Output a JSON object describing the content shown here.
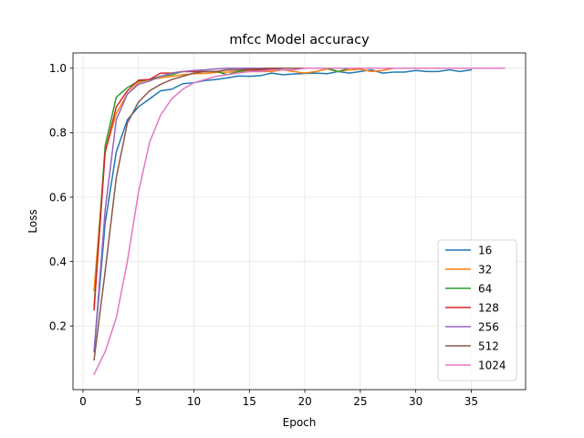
{
  "chart_data": {
    "type": "line",
    "title": "mfcc Model accuracy",
    "xlabel": "Epoch",
    "ylabel": "Loss",
    "xlim": [
      -0.9,
      39.9
    ],
    "ylim": [
      0.0024,
      1.0476
    ],
    "xticks": [
      0,
      5,
      10,
      15,
      20,
      25,
      30,
      35
    ],
    "yticks": [
      0.2,
      0.4,
      0.6,
      0.8,
      1.0
    ],
    "ytick_labels": [
      "0.2",
      "0.4",
      "0.6",
      "0.8",
      "1.0"
    ],
    "grid": true,
    "legend_position": "lower-right",
    "series": [
      {
        "name": "16",
        "color": "#1f77b4",
        "x": [
          1,
          2,
          3,
          4,
          5,
          6,
          7,
          8,
          9,
          10,
          11,
          12,
          13,
          14,
          15,
          16,
          17,
          18,
          19,
          20,
          21,
          22,
          23,
          24,
          25,
          26,
          27,
          28,
          29,
          30,
          31,
          32,
          33,
          34,
          35
        ],
        "y": [
          0.12,
          0.52,
          0.74,
          0.84,
          0.88,
          0.905,
          0.93,
          0.935,
          0.952,
          0.955,
          0.962,
          0.965,
          0.97,
          0.976,
          0.975,
          0.977,
          0.985,
          0.98,
          0.982,
          0.984,
          0.985,
          0.983,
          0.99,
          0.985,
          0.99,
          0.995,
          0.985,
          0.988,
          0.988,
          0.993,
          0.99,
          0.99,
          0.995,
          0.99,
          0.995
        ]
      },
      {
        "name": "32",
        "color": "#ff7f0e",
        "x": [
          1,
          2,
          3,
          4,
          5,
          6,
          7,
          8,
          9,
          10,
          11,
          12,
          13,
          14,
          15,
          16,
          17,
          18,
          19,
          20,
          21,
          22,
          23,
          24,
          25,
          26,
          27,
          28
        ],
        "y": [
          0.31,
          0.74,
          0.86,
          0.92,
          0.955,
          0.965,
          0.97,
          0.975,
          0.98,
          0.983,
          0.984,
          0.987,
          0.988,
          0.99,
          0.99,
          0.99,
          0.99,
          0.995,
          0.99,
          0.985,
          0.99,
          0.998,
          0.99,
          0.995,
          0.997,
          0.99,
          0.993,
          1.0
        ]
      },
      {
        "name": "64",
        "color": "#2ca02c",
        "x": [
          1,
          2,
          3,
          4,
          5,
          6,
          7,
          8,
          9,
          10,
          11,
          12,
          13,
          14,
          15,
          16,
          17,
          18,
          19,
          20,
          21,
          22,
          23,
          24,
          25,
          26
        ],
        "y": [
          0.26,
          0.76,
          0.91,
          0.94,
          0.96,
          0.965,
          0.975,
          0.98,
          0.99,
          0.99,
          0.99,
          0.99,
          0.98,
          0.99,
          0.995,
          0.99,
          0.995,
          1.0,
          1.0,
          1.0,
          1.0,
          1.0,
          0.99,
          1.0,
          1.0,
          1.0
        ]
      },
      {
        "name": "128",
        "color": "#d62728",
        "x": [
          1,
          2,
          3,
          4,
          5,
          6,
          7,
          8,
          9,
          10,
          11,
          12,
          13,
          14,
          15,
          16,
          17,
          18,
          19,
          20,
          21,
          22,
          23,
          24,
          25
        ],
        "y": [
          0.25,
          0.74,
          0.88,
          0.93,
          0.963,
          0.965,
          0.985,
          0.985,
          0.99,
          0.99,
          0.99,
          0.99,
          0.995,
          0.995,
          0.995,
          0.995,
          0.998,
          1.0,
          1.0,
          1.0,
          1.0,
          1.0,
          1.0,
          1.0,
          1.0
        ]
      },
      {
        "name": "256",
        "color": "#9467bd",
        "x": [
          1,
          2,
          3,
          4,
          5,
          6,
          7,
          8,
          9,
          10,
          11,
          12,
          13,
          14,
          15,
          16,
          17,
          18,
          19,
          20,
          21,
          22,
          23,
          24,
          25,
          26,
          27,
          28
        ],
        "y": [
          0.12,
          0.56,
          0.84,
          0.92,
          0.95,
          0.96,
          0.975,
          0.985,
          0.99,
          0.993,
          0.995,
          0.998,
          1.0,
          1.0,
          1.0,
          1.0,
          1.0,
          1.0,
          1.0,
          1.0,
          1.0,
          1.0,
          1.0,
          1.0,
          1.0,
          1.0,
          1.0,
          1.0
        ]
      },
      {
        "name": "512",
        "color": "#8c564b",
        "x": [
          1,
          2,
          3,
          4,
          5,
          6,
          7,
          8,
          9,
          10,
          11,
          12,
          13,
          14,
          15,
          16,
          17,
          18,
          19,
          20,
          21,
          22,
          23,
          24,
          25,
          26,
          27,
          28,
          29,
          30,
          31,
          32,
          33,
          34,
          35
        ],
        "y": [
          0.095,
          0.37,
          0.66,
          0.83,
          0.895,
          0.93,
          0.95,
          0.965,
          0.975,
          0.985,
          0.99,
          0.99,
          0.995,
          0.995,
          0.997,
          0.998,
          1.0,
          1.0,
          1.0,
          1.0,
          1.0,
          1.0,
          1.0,
          1.0,
          1.0,
          1.0,
          1.0,
          1.0,
          1.0,
          1.0,
          1.0,
          1.0,
          1.0,
          1.0,
          1.0
        ]
      },
      {
        "name": "1024",
        "color": "#e377c2",
        "x": [
          1,
          2,
          3,
          4,
          5,
          6,
          7,
          8,
          9,
          10,
          11,
          12,
          13,
          14,
          15,
          16,
          17,
          18,
          19,
          20,
          21,
          22,
          23,
          24,
          25,
          26,
          27,
          28,
          29,
          30,
          31,
          32,
          33,
          34,
          35,
          36,
          37,
          38
        ],
        "y": [
          0.05,
          0.12,
          0.225,
          0.4,
          0.615,
          0.77,
          0.855,
          0.905,
          0.935,
          0.955,
          0.965,
          0.975,
          0.98,
          0.985,
          0.99,
          0.99,
          0.995,
          0.995,
          0.995,
          1.0,
          1.0,
          1.0,
          1.0,
          1.0,
          1.0,
          1.0,
          1.0,
          1.0,
          1.0,
          1.0,
          1.0,
          1.0,
          1.0,
          1.0,
          1.0,
          1.0,
          1.0,
          1.0
        ]
      }
    ]
  }
}
